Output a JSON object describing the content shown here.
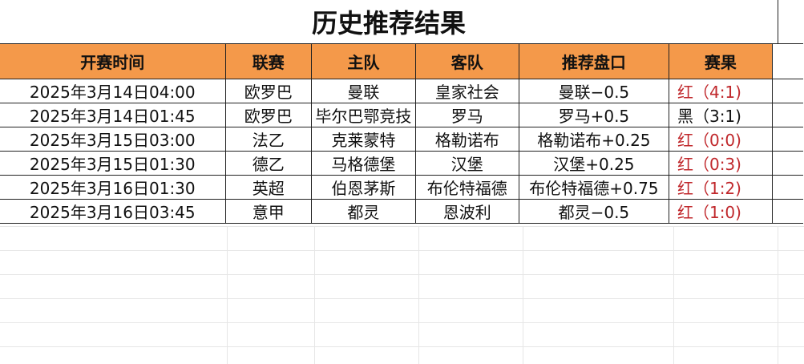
{
  "title": "历史推荐结果",
  "colors": {
    "header_bg": "#f4994a",
    "red_result": "#c0282c"
  },
  "headers": [
    "开赛时间",
    "联赛",
    "主队",
    "客队",
    "推荐盘口",
    "赛果"
  ],
  "rows": [
    {
      "time": "2025年3月14日04:00",
      "league": "欧罗巴",
      "home": "曼联",
      "away": "皇家社会",
      "pick": "曼联−0.5",
      "result": "红（4:1)",
      "red": true
    },
    {
      "time": "2025年3月14日01:45",
      "league": "欧罗巴",
      "home": "毕尔巴鄂竞技",
      "away": "罗马",
      "pick": "罗马+0.5",
      "result": "黑（3:1)",
      "red": false
    },
    {
      "time": "2025年3月15日03:00",
      "league": "法乙",
      "home": "克莱蒙特",
      "away": "格勒诺布",
      "pick": "格勒诺布+0.25",
      "result": "红（0:0)",
      "red": true
    },
    {
      "time": "2025年3月15日01:30",
      "league": "德乙",
      "home": "马格德堡",
      "away": "汉堡",
      "pick": "汉堡+0.25",
      "result": "红（0:3)",
      "red": true
    },
    {
      "time": "2025年3月16日01:30",
      "league": "英超",
      "home": "伯恩茅斯",
      "away": "布伦特福德",
      "pick": "布伦特福德+0.75",
      "result": "红（1:2)",
      "red": true
    },
    {
      "time": "2025年3月16日03:45",
      "league": "意甲",
      "home": "都灵",
      "away": "恩波利",
      "pick": "都灵−0.5",
      "result": "红（1:0)",
      "red": true
    }
  ]
}
